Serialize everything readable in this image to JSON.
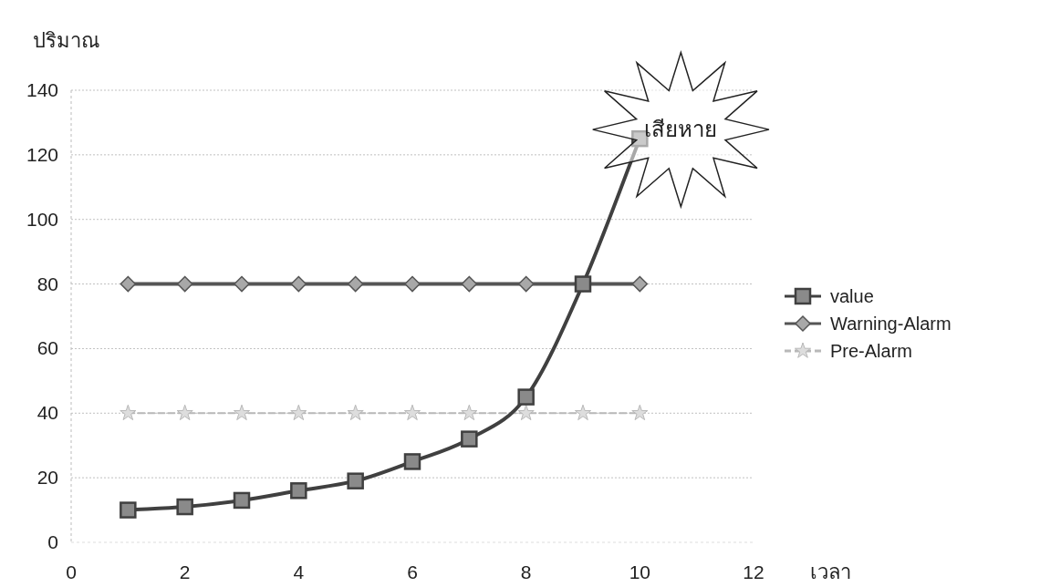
{
  "chart_data": {
    "type": "line",
    "xlabel": "เวลา",
    "ylabel": "ปริมาณ",
    "x": [
      1,
      2,
      3,
      4,
      5,
      6,
      7,
      8,
      9,
      10
    ],
    "series": [
      {
        "name": "value",
        "color": "#404040",
        "marker": "square",
        "line_style": "solid",
        "values": [
          10,
          11,
          13,
          16,
          19,
          25,
          32,
          45,
          80,
          125
        ]
      },
      {
        "name": "Warning-Alarm",
        "color": "#555555",
        "marker": "diamond",
        "line_style": "solid",
        "values": [
          80,
          80,
          80,
          80,
          80,
          80,
          80,
          80,
          80,
          80
        ]
      },
      {
        "name": "Pre-Alarm",
        "color": "#b8b8b8",
        "marker": "star",
        "line_style": "dashed",
        "values": [
          40,
          40,
          40,
          40,
          40,
          40,
          40,
          40,
          40,
          40
        ]
      }
    ],
    "xlim": [
      0,
      12
    ],
    "xticks": [
      0,
      2,
      4,
      6,
      8,
      10,
      12
    ],
    "ylim": [
      0,
      140
    ],
    "yticks": [
      0,
      20,
      40,
      60,
      80,
      100,
      120,
      140
    ],
    "grid": "y",
    "legend": "right",
    "annotations": [
      "เสียหาย"
    ]
  }
}
